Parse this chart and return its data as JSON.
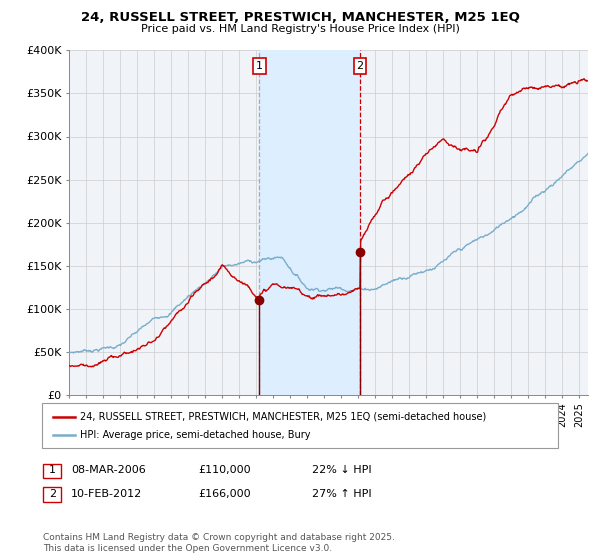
{
  "title": "24, RUSSELL STREET, PRESTWICH, MANCHESTER, M25 1EQ",
  "subtitle": "Price paid vs. HM Land Registry's House Price Index (HPI)",
  "legend_line1": "24, RUSSELL STREET, PRESTWICH, MANCHESTER, M25 1EQ (semi-detached house)",
  "legend_line2": "HPI: Average price, semi-detached house, Bury",
  "red_line_color": "#cc0000",
  "blue_line_color": "#7aadcc",
  "marker_color": "#880000",
  "shade_color": "#ddeeff",
  "grid_color": "#cccccc",
  "bg_color": "#f0f4f8",
  "event1_year": 2006.18,
  "event1_price": 110000,
  "event2_year": 2012.11,
  "event2_price": 166000,
  "table_row1": [
    "1",
    "08-MAR-2006",
    "£110,000",
    "22% ↓ HPI"
  ],
  "table_row2": [
    "2",
    "10-FEB-2012",
    "£166,000",
    "27% ↑ HPI"
  ],
  "footnote": "Contains HM Land Registry data © Crown copyright and database right 2025.\nThis data is licensed under the Open Government Licence v3.0.",
  "ylim": [
    0,
    400000
  ],
  "xlim_start": 1995.0,
  "xlim_end": 2025.5,
  "yticks": [
    0,
    50000,
    100000,
    150000,
    200000,
    250000,
    300000,
    350000,
    400000
  ],
  "ytick_labels": [
    "£0",
    "£50K",
    "£100K",
    "£150K",
    "£200K",
    "£250K",
    "£300K",
    "£350K",
    "£400K"
  ]
}
